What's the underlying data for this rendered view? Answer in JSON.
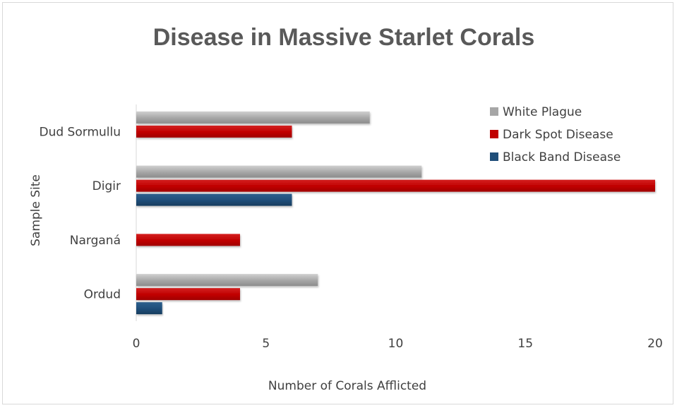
{
  "chart_data": {
    "type": "bar",
    "orientation": "horizontal",
    "title": "Disease in Massive Starlet Corals",
    "xlabel": "Number of Corals Afflicted",
    "ylabel": "Sample Site",
    "categories": [
      "Ordud",
      "Narganá",
      "Digir",
      "Dud Sormullu"
    ],
    "series": [
      {
        "name": "Black Band Disease",
        "color": "#1f4e79",
        "values": [
          1,
          0,
          6,
          0
        ]
      },
      {
        "name": "Dark Spot Disease",
        "color": "#c00000",
        "values": [
          4,
          4,
          20,
          6
        ]
      },
      {
        "name": "White Plague",
        "color": "#a6a6a6",
        "values": [
          7,
          0,
          11,
          9
        ]
      }
    ],
    "xlim": [
      0,
      20
    ],
    "xticks": [
      0,
      5,
      10,
      15,
      20
    ],
    "xtick_labels": [
      "0",
      "5",
      "10",
      "15",
      "20"
    ],
    "grid": false,
    "legend_position": "top-right"
  }
}
